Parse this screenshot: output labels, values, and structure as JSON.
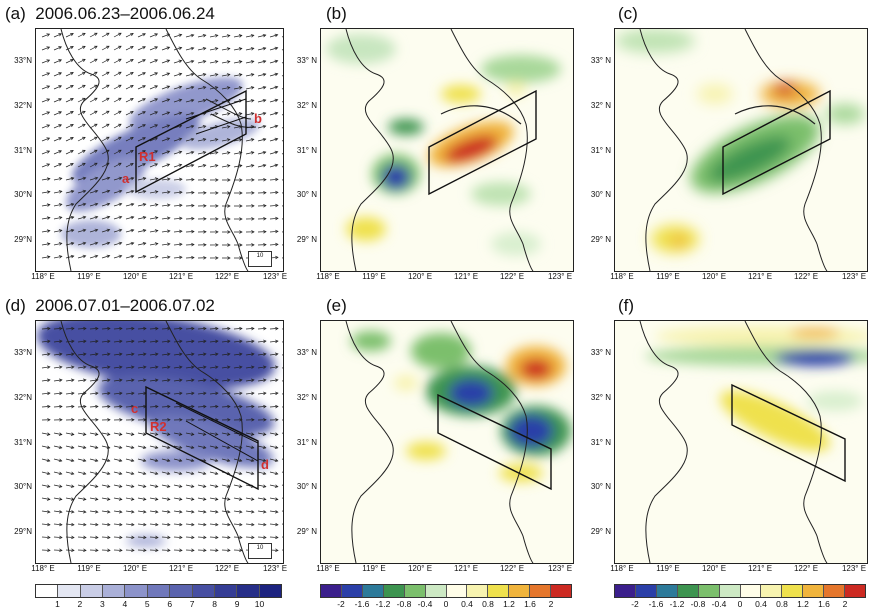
{
  "panels": [
    {
      "id": "a",
      "label": "(a)",
      "title": "2006.06.23–2006.06.24",
      "region_labels": [
        "b",
        "R1",
        "a"
      ]
    },
    {
      "id": "b",
      "label": "(b)"
    },
    {
      "id": "c",
      "label": "(c)"
    },
    {
      "id": "d",
      "label": "(d)",
      "title": "2006.07.01–2006.07.02",
      "region_labels": [
        "c",
        "R2",
        "d"
      ]
    },
    {
      "id": "e",
      "label": "(e)"
    },
    {
      "id": "f",
      "label": "(f)"
    }
  ],
  "lat_ticks_a": [
    "33°N",
    "32°N",
    "31°N",
    "30°N",
    "29°N"
  ],
  "lat_ticks_other": [
    "33° N",
    "32° N",
    "31° N",
    "30° N",
    "29° N"
  ],
  "lon_ticks": [
    "118° E",
    "119° E",
    "120° E",
    "121° E",
    "122° E",
    "123° E"
  ],
  "ref_vector_label": "10",
  "colorbar_left": {
    "labels": [
      "1",
      "2",
      "3",
      "4",
      "5",
      "6",
      "7",
      "8",
      "9",
      "10"
    ],
    "colors": [
      "#ffffff",
      "#e3e6f2",
      "#c9cde6",
      "#aab0d8",
      "#8c93ca",
      "#7078bb",
      "#5a63ae",
      "#474fa2",
      "#353d95",
      "#262e88",
      "#1c2380"
    ]
  },
  "colorbar_right": {
    "labels": [
      "-2",
      "-1.6",
      "-1.2",
      "-0.8",
      "-0.4",
      "0",
      "0.4",
      "0.8",
      "1.2",
      "1.6",
      "2"
    ],
    "colors": [
      "#3b1f8c",
      "#2b3fa8",
      "#2d7a9a",
      "#3d9450",
      "#7bbf6c",
      "#cde9c4",
      "#fffde8",
      "#f7f3b0",
      "#efe14d",
      "#f0b43c",
      "#e5762c",
      "#cc2a22"
    ]
  }
}
